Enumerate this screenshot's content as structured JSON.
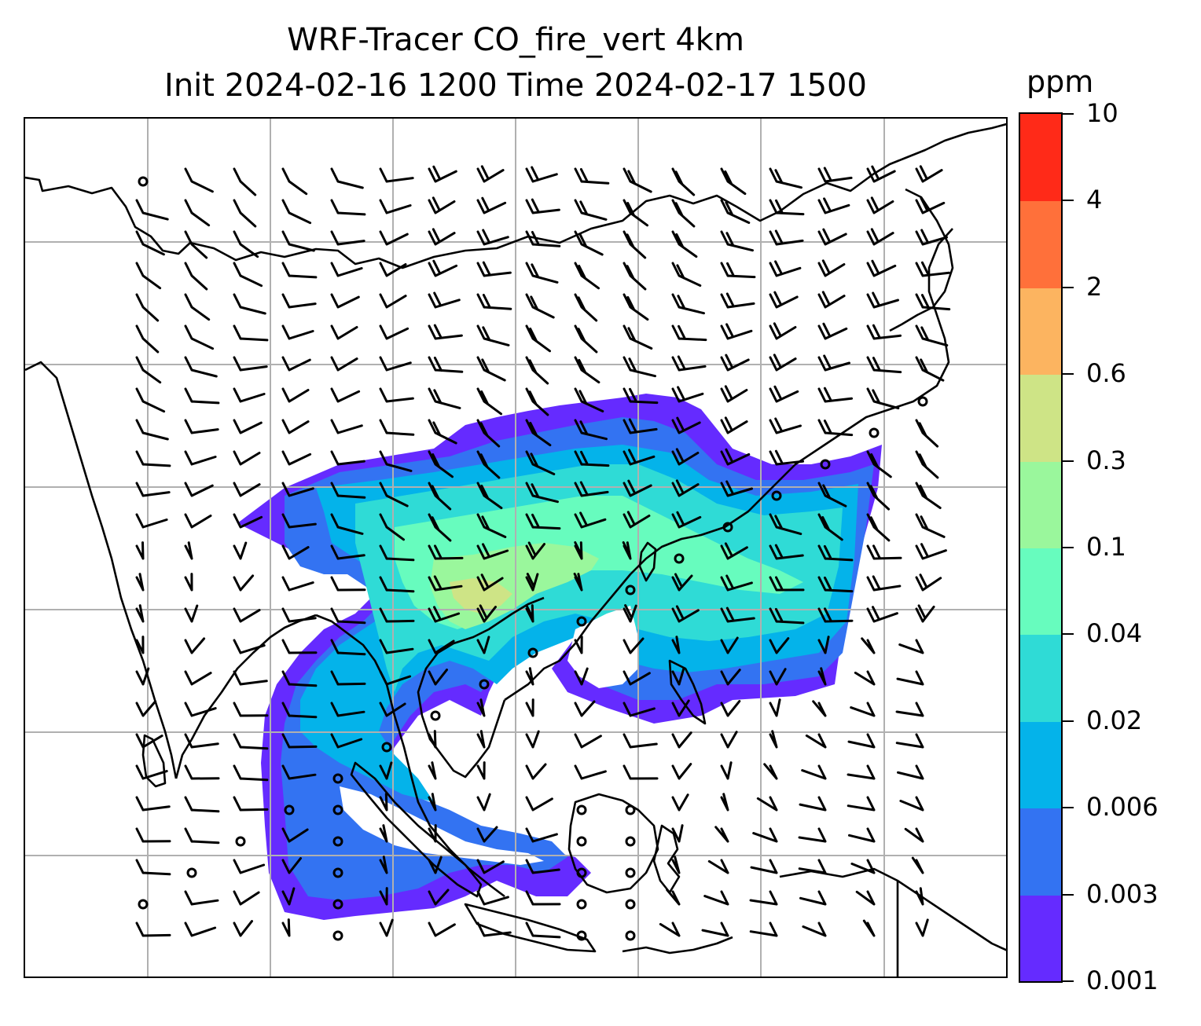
{
  "title": {
    "line1": "WRF-Tracer CO_fire_vert 4km",
    "line2": "Init 2024-02-16 1200 Time 2024-02-17 1500"
  },
  "colorbar": {
    "units": "ppm",
    "levels": [
      "0.001",
      "0.003",
      "0.006",
      "0.02",
      "0.04",
      "0.1",
      "0.3",
      "0.6",
      "2",
      "4",
      "10"
    ],
    "colors": [
      "#652bff",
      "#3373f2",
      "#04b3ea",
      "#2fdbd6",
      "#67fcbe",
      "#9af79c",
      "#cee486",
      "#fcb460",
      "#ff703a",
      "#ff2a18"
    ]
  },
  "map": {
    "field": "CO_fire_vert",
    "vertical_level": "4km",
    "gridlines": "on",
    "wind_barbs": "on",
    "coastlines": "on"
  }
}
